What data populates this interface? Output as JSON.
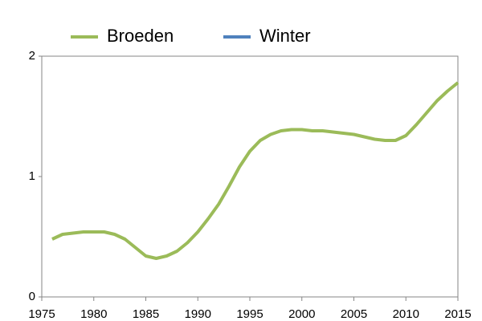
{
  "chart_data": {
    "type": "line",
    "x": [
      1976,
      1977,
      1978,
      1979,
      1980,
      1981,
      1982,
      1983,
      1984,
      1985,
      1986,
      1987,
      1988,
      1989,
      1990,
      1991,
      1992,
      1993,
      1994,
      1995,
      1996,
      1997,
      1998,
      1999,
      2000,
      2001,
      2002,
      2003,
      2004,
      2005,
      2006,
      2007,
      2008,
      2009,
      2010,
      2011,
      2012,
      2013,
      2014,
      2015
    ],
    "series": [
      {
        "name": "Broeden",
        "color": "#9bbb59",
        "values": [
          0.48,
          0.52,
          0.53,
          0.54,
          0.54,
          0.54,
          0.52,
          0.48,
          0.41,
          0.34,
          0.32,
          0.34,
          0.38,
          0.45,
          0.54,
          0.65,
          0.77,
          0.92,
          1.08,
          1.21,
          1.3,
          1.35,
          1.38,
          1.39,
          1.39,
          1.38,
          1.38,
          1.37,
          1.36,
          1.35,
          1.33,
          1.31,
          1.3,
          1.3,
          1.34,
          1.43,
          1.53,
          1.63,
          1.71,
          1.78
        ]
      },
      {
        "name": "Winter",
        "color": "#4f81bd",
        "values": [
          null,
          null,
          null,
          null,
          null,
          null,
          null,
          null,
          null,
          null,
          null,
          null,
          null,
          null,
          null,
          null,
          null,
          null,
          null,
          null,
          null,
          null,
          null,
          null,
          null,
          null,
          null,
          null,
          null,
          null,
          null,
          null,
          null,
          null,
          null,
          null,
          null,
          null,
          null,
          null
        ]
      }
    ],
    "xlim": [
      1975,
      2015
    ],
    "xticks": [
      1975,
      1980,
      1985,
      1990,
      1995,
      2000,
      2005,
      2010,
      2015
    ],
    "ylim": [
      0,
      2
    ],
    "yticks": [
      0,
      1,
      2
    ],
    "grid": false
  }
}
